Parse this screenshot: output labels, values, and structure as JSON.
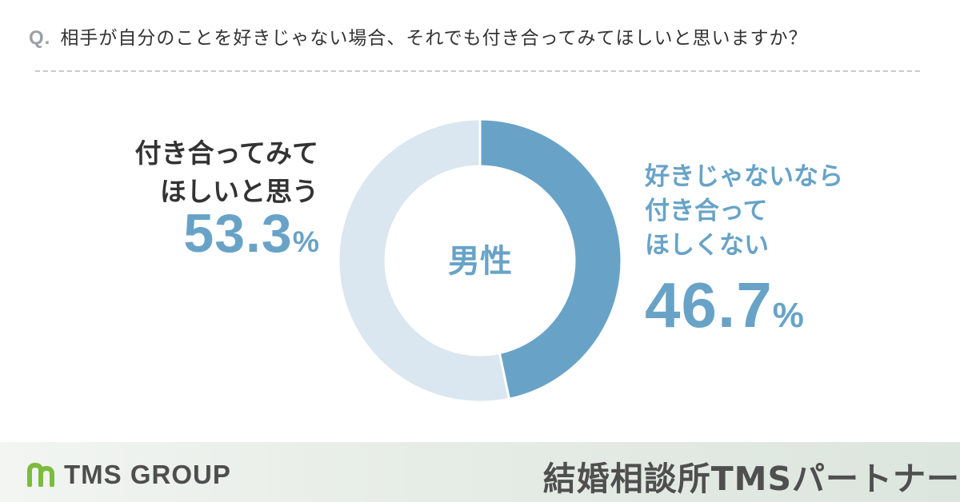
{
  "question": {
    "prefix": "Q.",
    "text": "相手が自分のことを好きじゃない場合、それでも付き合ってみてほしいと思いますか？"
  },
  "chart_data": {
    "type": "pie",
    "variant": "donut",
    "center_label": "男性",
    "slices": [
      {
        "label_lines": [
          "好きじゃないなら",
          "付き合って",
          "ほしくない"
        ],
        "value": 46.7,
        "display": "46.7",
        "color": "#68a3c7"
      },
      {
        "label_lines": [
          "付き合ってみて",
          "ほしいと思う"
        ],
        "value": 53.3,
        "display": "53.3",
        "color": "#dae6f0"
      }
    ],
    "unit": "%"
  },
  "footer": {
    "brand_name": "TMS GROUP",
    "logo_color": "#7dbb3c",
    "agency_name": "結婚相談所TMSパートナー"
  }
}
